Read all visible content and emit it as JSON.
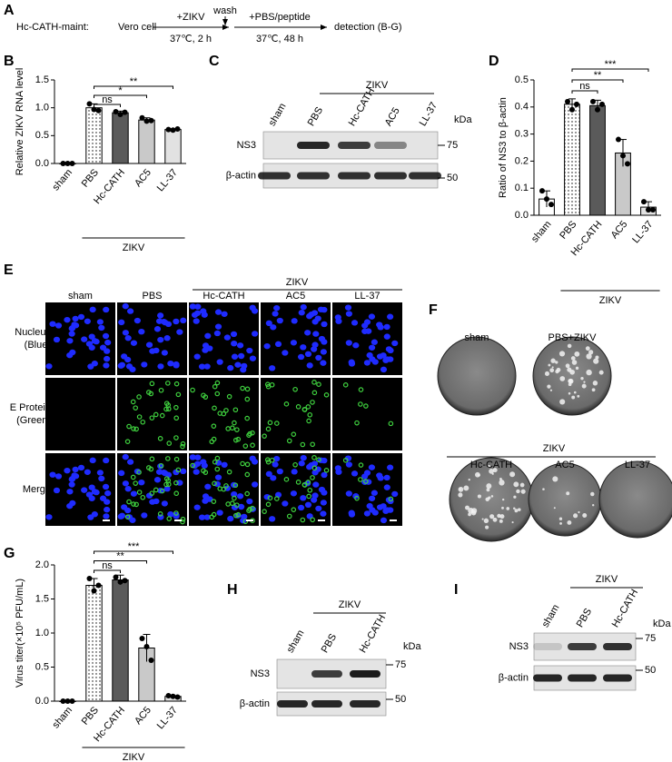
{
  "panel_labels": [
    "A",
    "B",
    "C",
    "D",
    "E",
    "F",
    "G",
    "H",
    "I"
  ],
  "scheme": {
    "label": "Hc-CATH-maint:",
    "start": "Vero cell",
    "step1_top": "+ZIKV",
    "step1_bottom": "37℃, 2 h",
    "wash": "wash",
    "step2_top": "+PBS/peptide",
    "step2_bottom": "37℃, 48 h",
    "end": "detection (B-G)"
  },
  "chart_data": [
    {
      "type": "bar",
      "ylabel": "Relative ZIKV RNA level",
      "categories": [
        "sham",
        "PBS",
        "Hc-CATH",
        "AC5",
        "LL-37"
      ],
      "values": [
        0.0,
        1.0,
        0.91,
        0.78,
        0.61
      ],
      "errors": [
        0.0,
        0.07,
        0.03,
        0.04,
        0.01
      ],
      "points": [
        [
          0,
          0,
          0
        ],
        [
          1.07,
          0.97,
          0.95
        ],
        [
          0.93,
          0.88,
          0.92
        ],
        [
          0.82,
          0.76,
          0.77
        ],
        [
          0.61,
          0.6,
          0.62
        ]
      ],
      "fills": [
        "#ffffff",
        "dotted",
        "#5a5a5a",
        "#c9c9c9",
        "#e2e2e2"
      ],
      "ylim": [
        0,
        1.5
      ],
      "yticks": [
        {
          "value": 0,
          "label": "0.0"
        },
        0.5,
        {
          "value": 1,
          "label": "1.0"
        },
        1.5
      ],
      "group_label": "ZIKV",
      "significance": [
        "ns",
        "*",
        "**"
      ]
    },
    {
      "type": "bar",
      "ylabel": "Ratio of NS3 to β-actin",
      "categories": [
        "sham",
        "PBS",
        "Hc-CATH",
        "AC5",
        "LL-37"
      ],
      "values": [
        0.06,
        0.41,
        0.405,
        0.23,
        0.03
      ],
      "errors": [
        0.03,
        0.02,
        0.02,
        0.05,
        0.02
      ],
      "points": [
        [
          0.09,
          0.06,
          0.04
        ],
        [
          0.42,
          0.39,
          0.41
        ],
        [
          0.42,
          0.39,
          0.41
        ],
        [
          0.28,
          0.22,
          0.19
        ],
        [
          0.05,
          0.02,
          0.02
        ]
      ],
      "fills": [
        "#ffffff",
        "dotted",
        "#5a5a5a",
        "#c9c9c9",
        "#e2e2e2"
      ],
      "ylim": [
        0,
        0.5
      ],
      "yticks": [
        {
          "value": 0,
          "label": "0.0"
        },
        0.1,
        0.2,
        0.3,
        0.4,
        0.5
      ],
      "group_label": "ZIKV",
      "significance": [
        "ns",
        "**",
        "***"
      ]
    },
    {
      "type": "bar",
      "ylabel": "Virus titer(×10⁵ PFU/mL)",
      "categories": [
        "sham",
        "PBS",
        "Hc-CATH",
        "AC5",
        "LL-37"
      ],
      "values": [
        0.0,
        1.7,
        1.78,
        0.78,
        0.07
      ],
      "errors": [
        0.0,
        0.1,
        0.07,
        0.2,
        0.01
      ],
      "points": [
        [
          0,
          0,
          0
        ],
        [
          1.8,
          1.62,
          1.7
        ],
        [
          1.82,
          1.75,
          1.77
        ],
        [
          0.92,
          0.8,
          0.6
        ],
        [
          0.08,
          0.07,
          0.06
        ]
      ],
      "fills": [
        "#ffffff",
        "dotted",
        "#5a5a5a",
        "#c9c9c9",
        "#e2e2e2"
      ],
      "ylim": [
        0,
        2.0
      ],
      "yticks": [
        {
          "value": 0,
          "label": "0.0"
        },
        0.5,
        {
          "value": 1,
          "label": "1.0"
        },
        1.5,
        {
          "value": 2,
          "label": "2.0"
        }
      ],
      "group_label": "ZIKV",
      "significance": [
        "ns",
        "**",
        "***"
      ]
    }
  ],
  "blots": [
    {
      "group": "ZIKV",
      "lanes": [
        "sham",
        "PBS",
        "Hc-CATH",
        "AC5",
        "LL-37"
      ],
      "unit": "kDa",
      "markers": [
        "75",
        "50"
      ],
      "rows": [
        "NS3",
        "β-actin"
      ]
    },
    {
      "group": "ZIKV",
      "lanes": [
        "sham",
        "PBS",
        "Hc-CATH"
      ],
      "unit": "kDa",
      "markers": [
        "75",
        "50"
      ],
      "rows": [
        "NS3",
        "β-actin"
      ]
    },
    {
      "group": "ZIKV",
      "lanes": [
        "sham",
        "PBS",
        "Hc-CATH"
      ],
      "unit": "kDa",
      "markers": [
        "75",
        "50"
      ],
      "rows": [
        "NS3",
        "β-actin"
      ]
    }
  ],
  "microscopy": {
    "group": "ZIKV",
    "columns": [
      "sham",
      "PBS",
      "Hc-CATH",
      "AC5",
      "LL-37"
    ],
    "rows": [
      [
        "Nucleus",
        "(Blue)"
      ],
      [
        "E Protein",
        "(Green)"
      ],
      [
        "Merge"
      ]
    ]
  },
  "plaques": {
    "top": [
      "sham",
      "PBS+ZIKV"
    ],
    "group": "ZIKV",
    "bottom": [
      "Hc-CATH",
      "AC5",
      "LL-37"
    ]
  }
}
